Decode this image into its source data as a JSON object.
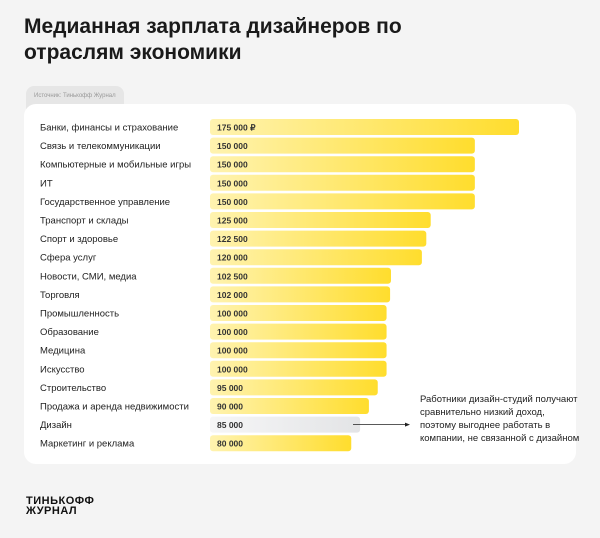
{
  "chart_data": {
    "type": "bar",
    "orientation": "horizontal",
    "title": "Медианная зарплата дизайнеров по отраслям экономики",
    "source": "Источник: Тинькофф Журнал",
    "categories": [
      "Банки, финансы и страхование",
      "Связь и телекоммуникации",
      "Компьютерные и мобильные игры",
      "ИТ",
      "Государственное управление",
      "Транспорт и склады",
      "Спорт и здоровье",
      "Сфера услуг",
      "Новости, СМИ, медиа",
      "Торговля",
      "Промышленность",
      "Образование",
      "Медицина",
      "Искусство",
      "Строительство",
      "Продажа и аренда недвижимости",
      "Дизайн",
      "Маркетинг и реклама"
    ],
    "values": [
      175000,
      150000,
      150000,
      150000,
      150000,
      125000,
      122500,
      120000,
      102500,
      102000,
      100000,
      100000,
      100000,
      100000,
      95000,
      90000,
      85000,
      80000
    ],
    "labels": [
      "175 000 ₽",
      "150 000",
      "150 000",
      "150 000",
      "150 000",
      "125 000",
      "122 500",
      "120 000",
      "102 500",
      "102 000",
      "100 000",
      "100 000",
      "100 000",
      "100 000",
      "95 000",
      "90 000",
      "85 000",
      "80 000"
    ],
    "highlight_category": "Дизайн",
    "annotation": "Работники дизайн-студий получают сравнительно низкий доход, поэтому выгоднее работать в компании, не связанной с дизайном",
    "colors": {
      "bar": "#ffdd2d",
      "bar_light": "#fff3b0",
      "highlight": "#e3e4e6",
      "highlight_light": "#f6f6f7"
    },
    "grid": false
  },
  "logo": {
    "line1": "ТИНЬКОФФ",
    "line2": "ЖУРНАЛ"
  }
}
